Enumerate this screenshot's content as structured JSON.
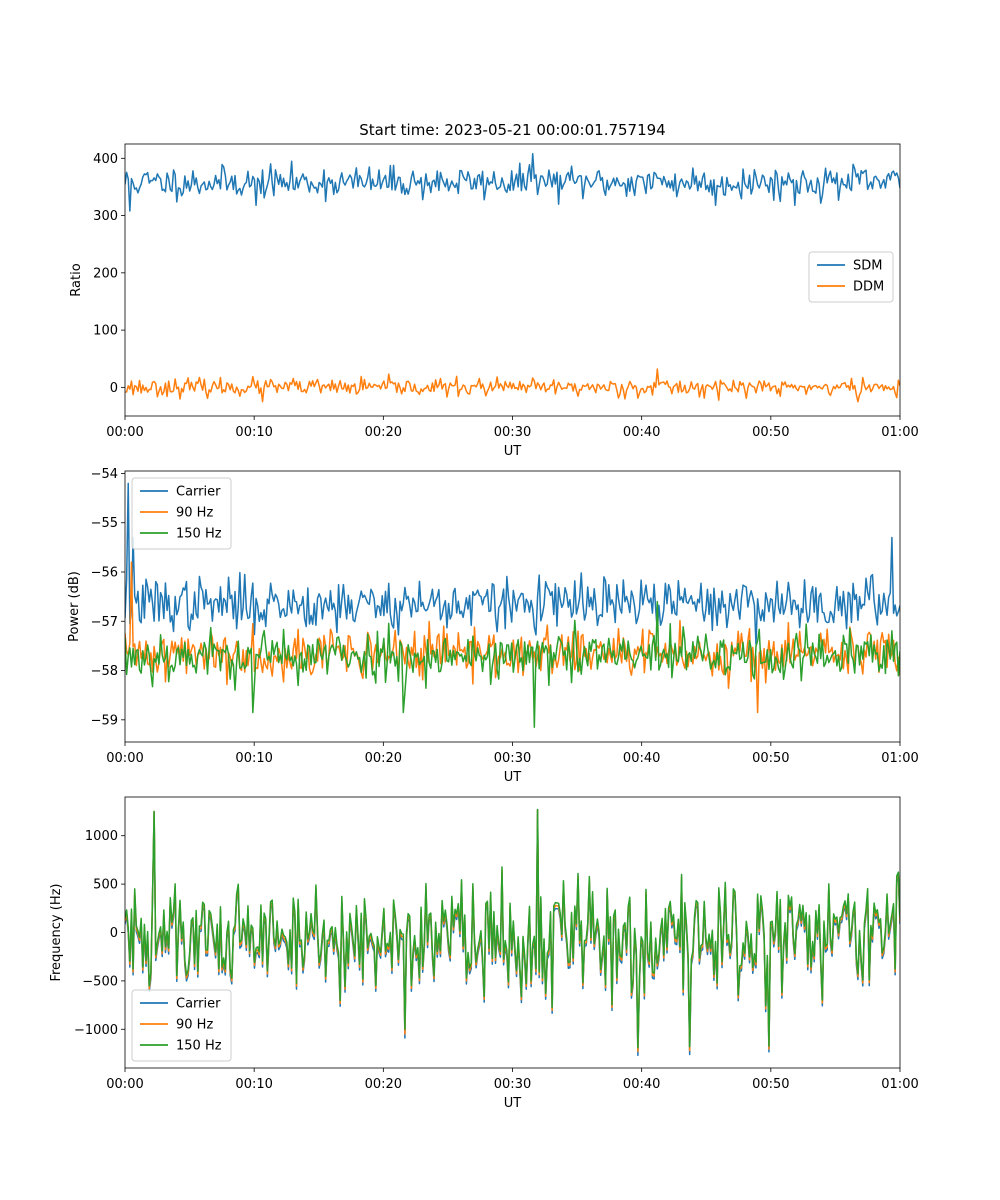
{
  "chart_data": [
    {
      "type": "line",
      "title": "Start time: 2023-05-21 00:00:01.757194",
      "xlabel": "UT",
      "ylabel": "Ratio",
      "x_ticks": [
        "00:00",
        "00:10",
        "00:20",
        "00:30",
        "00:40",
        "00:50",
        "01:00"
      ],
      "y_ticks": [
        "0",
        "100",
        "200",
        "300",
        "400"
      ],
      "xlim_minutes": [
        0,
        60
      ],
      "ylim": [
        -50,
        425
      ],
      "legend_position": "center-right",
      "grid": false,
      "series": [
        {
          "name": "SDM",
          "color": "#1f77b4",
          "mean": 358,
          "noise": 18,
          "seed": 11,
          "spikes": [
            [
              0.4,
              308
            ],
            [
              31.6,
              408
            ],
            [
              10.2,
              318
            ],
            [
              45.7,
              318
            ],
            [
              51.8,
              318
            ]
          ]
        },
        {
          "name": "DDM",
          "color": "#ff7f0e",
          "mean": 0,
          "noise": 10,
          "seed": 23,
          "spikes": [
            [
              41.2,
              32
            ],
            [
              10.7,
              -25
            ],
            [
              56.7,
              -25
            ],
            [
              59.8,
              -18
            ]
          ]
        }
      ],
      "n_points": 480
    },
    {
      "type": "line",
      "title": "",
      "xlabel": "UT",
      "ylabel": "Power (dB)",
      "x_ticks": [
        "00:00",
        "00:10",
        "00:20",
        "00:30",
        "00:40",
        "00:50",
        "01:00"
      ],
      "y_ticks": [
        "−59",
        "−58",
        "−57",
        "−56",
        "−55",
        "−54"
      ],
      "xlim_minutes": [
        0,
        60
      ],
      "ylim": [
        -59.45,
        -53.95
      ],
      "legend_position": "upper-left",
      "grid": false,
      "series": [
        {
          "name": "Carrier",
          "color": "#1f77b4",
          "mean": -56.65,
          "noise": 0.35,
          "seed": 37,
          "spikes": [
            [
              0.3,
              -54.2
            ],
            [
              0.6,
              -55.3
            ],
            [
              59.4,
              -55.3
            ]
          ]
        },
        {
          "name": "90 Hz",
          "color": "#ff7f0e",
          "mean": -57.65,
          "noise": 0.33,
          "seed": 41,
          "spikes": [
            [
              0.45,
              -55.8
            ],
            [
              49.0,
              -58.85
            ]
          ]
        },
        {
          "name": "150 Hz",
          "color": "#2ca02c",
          "mean": -57.7,
          "noise": 0.35,
          "seed": 53,
          "spikes": [
            [
              31.7,
              -59.15
            ],
            [
              9.9,
              -58.85
            ],
            [
              21.6,
              -58.85
            ],
            [
              41.2,
              -56.6
            ]
          ]
        }
      ],
      "n_points": 480
    },
    {
      "type": "line",
      "title": "",
      "xlabel": "UT",
      "ylabel": "Frequency (Hz)",
      "x_ticks": [
        "00:00",
        "00:10",
        "00:20",
        "00:30",
        "00:40",
        "00:50",
        "01:00"
      ],
      "y_ticks": [
        "−1000",
        "−500",
        "0",
        "500",
        "1000"
      ],
      "xlim_minutes": [
        0,
        60
      ],
      "ylim": [
        -1400,
        1400
      ],
      "legend_position": "lower-left",
      "grid": false,
      "series": [
        {
          "name": "Carrier",
          "color": "#1f77b4",
          "mean": -30,
          "noise": 380,
          "seed": 61,
          "offset": -60,
          "spikes": [
            [
              39.7,
              -1270
            ],
            [
              43.7,
              -1260
            ],
            [
              21.7,
              -1090
            ],
            [
              2.2,
              1250
            ],
            [
              32.0,
              1270
            ]
          ]
        },
        {
          "name": "90 Hz",
          "color": "#ff7f0e",
          "mean": -30,
          "noise": 380,
          "seed": 61,
          "offset": -30,
          "spikes": [
            [
              39.7,
              -1230
            ],
            [
              43.7,
              -1220
            ],
            [
              21.7,
              -1050
            ],
            [
              2.2,
              1250
            ],
            [
              32.0,
              1270
            ]
          ]
        },
        {
          "name": "150 Hz",
          "color": "#2ca02c",
          "mean": -30,
          "noise": 380,
          "seed": 61,
          "offset": 0,
          "spikes": [
            [
              39.7,
              -1190
            ],
            [
              43.7,
              -1180
            ],
            [
              21.7,
              -1000
            ],
            [
              2.2,
              1250
            ],
            [
              32.0,
              1270
            ]
          ]
        }
      ],
      "n_points": 480
    }
  ]
}
